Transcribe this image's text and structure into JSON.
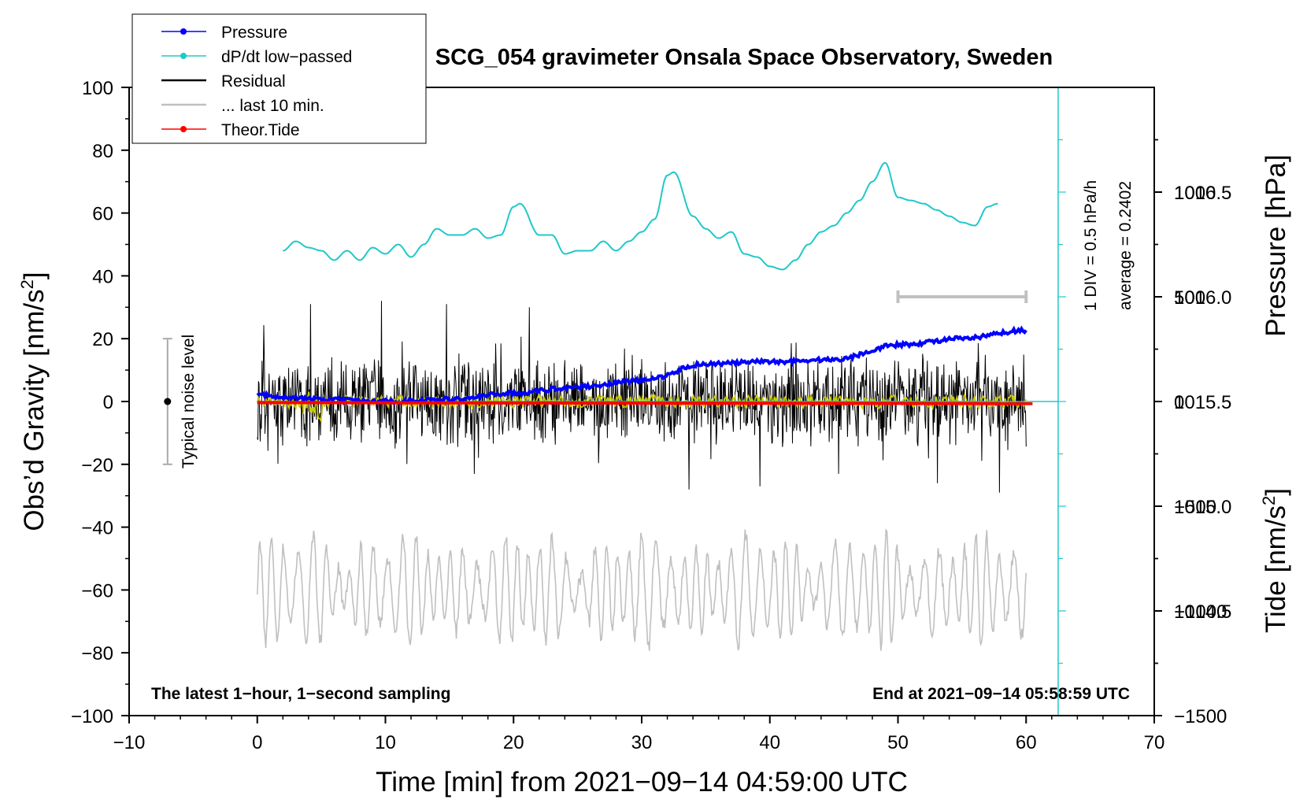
{
  "chart_data": {
    "type": "line",
    "title": "SCG_054 gravimeter Onsala Space Observatory, Sweden",
    "xlabel": "Time [min] from 2021−09−14 04:59:00 UTC",
    "ylabel_left": "Obs’d Gravity [nm/s",
    "ylabel_left_sup": "2",
    "ylabel_left_end": "]",
    "ylabel_pressure": "Pressure [hPa]",
    "ylabel_tide": "Tide [nm/s",
    "ylabel_tide_sup": "2",
    "ylabel_tide_end": "]",
    "xlim": [
      -10,
      70
    ],
    "ylim": [
      -100,
      100
    ],
    "x_ticks": [
      -10,
      0,
      10,
      20,
      30,
      40,
      50,
      60,
      70
    ],
    "x_tick_labels": [
      "−10",
      "0",
      "10",
      "20",
      "30",
      "40",
      "50",
      "60",
      "70"
    ],
    "y_ticks": [
      -100,
      -80,
      -60,
      -40,
      -20,
      0,
      20,
      40,
      60,
      80,
      100
    ],
    "y_tick_labels": [
      "−100",
      "−80",
      "−60",
      "−40",
      "−20",
      "0",
      "20",
      "40",
      "60",
      "80",
      "100"
    ],
    "pressure_axis": {
      "range": [
        1014.0,
        1017.0
      ],
      "ticks": [
        1014.5,
        1015.0,
        1015.5,
        1016.0,
        1016.5
      ],
      "tick_labels": [
        "1014.5",
        "1015.0",
        "1015.5",
        "1016.0",
        "1016.5"
      ]
    },
    "tide_axis": {
      "range": [
        -1500,
        1500
      ],
      "ticks": [
        -1500,
        -1000,
        -500,
        0,
        500,
        1000
      ],
      "tick_labels": [
        "−1500",
        "−1000",
        "−500",
        "0",
        "500",
        "1000"
      ]
    },
    "legend": [
      {
        "label": "Pressure",
        "color": "#0000ff",
        "marker": true
      },
      {
        "label": "dP/dt low−passed",
        "color": "#20c8c8",
        "marker": true
      },
      {
        "label": "Residual",
        "color": "#000000",
        "marker": false
      },
      {
        "label": "... last 10 min.",
        "color": "#c0c0c0",
        "marker": false
      },
      {
        "label": "Theor.Tide",
        "color": "#ff0000",
        "marker": true
      }
    ],
    "series": [
      {
        "name": "Pressure",
        "color": "#0000ff",
        "axis": "pressure",
        "x": [
          0,
          5,
          10,
          15,
          20,
          25,
          30,
          35,
          40,
          45,
          50,
          55,
          60
        ],
        "values": [
          1015.53,
          1015.51,
          1015.5,
          1015.51,
          1015.54,
          1015.57,
          1015.6,
          1015.68,
          1015.69,
          1015.7,
          1015.77,
          1015.8,
          1015.84
        ]
      },
      {
        "name": "dP/dt low−passed",
        "color": "#20c8c8",
        "axis": "dpdt",
        "baseline_hpa": 1015.5,
        "hpa_per_div": 0.5,
        "x": [
          2,
          3,
          4,
          5,
          6,
          7,
          8,
          9,
          10,
          11,
          12,
          13,
          14,
          15,
          16,
          17,
          18,
          19,
          20,
          20.5,
          22,
          23,
          24,
          25,
          26,
          27,
          28,
          29,
          30,
          31,
          32,
          32.5,
          34,
          35,
          36,
          37,
          38,
          39,
          40,
          41,
          42,
          43,
          44,
          45,
          46,
          47,
          48,
          49,
          50,
          51,
          52,
          53,
          54,
          55,
          56,
          57,
          57.8
        ],
        "values": [
          48,
          51,
          49,
          48,
          45,
          48,
          45,
          49,
          47,
          50,
          46,
          50,
          55,
          53,
          53,
          55,
          52,
          53,
          62,
          63,
          53,
          53,
          47,
          48,
          48,
          51,
          48,
          51,
          54,
          58,
          72,
          73,
          59,
          55,
          52,
          54,
          47,
          46,
          43,
          42,
          45,
          50,
          54,
          56,
          60,
          64,
          70,
          76,
          65,
          64,
          63,
          61,
          59,
          57,
          56,
          62,
          63
        ],
        "note": "plotted in gravity units; 1 DIV = 0.5 hPa/h, zero line at 1015.5 hPa"
      },
      {
        "name": "Residual",
        "color": "#000000",
        "axis": "gravity",
        "x_range": [
          0,
          60
        ],
        "amplitude_typical": 12,
        "peaks": [
          31,
          32,
          31,
          30,
          -28,
          -27,
          -26,
          -29
        ]
      },
      {
        "name": "Residual low-passed",
        "color": "#c8c800",
        "axis": "gravity",
        "x_range": [
          0,
          60
        ],
        "amplitude_typical": 2
      },
      {
        "name": "... last 10 min.",
        "color": "#c0c0c0",
        "axis": "gravity",
        "x_range": [
          0,
          60
        ],
        "offset": -60,
        "amplitude_typical": 15
      },
      {
        "name": "Theor.Tide",
        "color": "#ff0000",
        "axis": "tide",
        "x": [
          0,
          60.5
        ],
        "values": [
          -5,
          -10
        ]
      }
    ],
    "noise_bar": {
      "x": -7,
      "center": 0,
      "low": -20,
      "high": 20,
      "label": "Typical noise level"
    },
    "last10_bar": {
      "x_start": 50,
      "x_end": 60,
      "tide_value": 500
    },
    "annotations": {
      "div_text": "1 DIV = 0.5 hPa/h",
      "average_text": "average = 0.2402",
      "bottom_left": "The latest 1−hour, 1−second sampling",
      "bottom_right": "End at 2021−09−14 05:58:59 UTC"
    }
  }
}
